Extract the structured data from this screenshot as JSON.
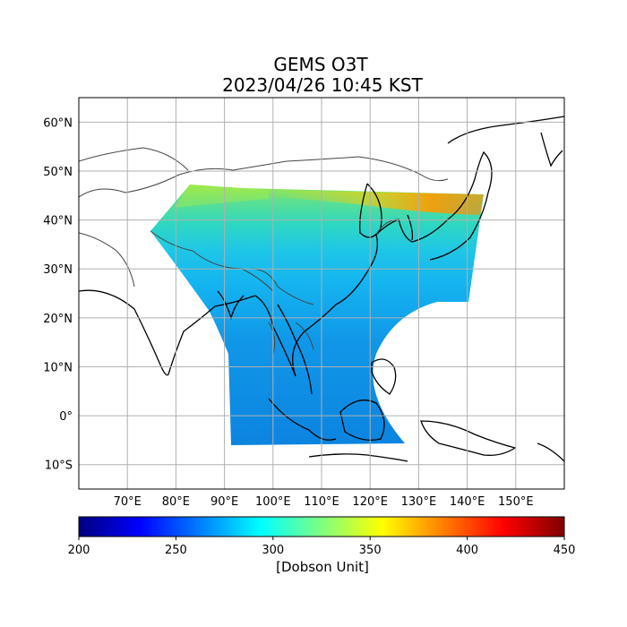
{
  "title": "GEMS O3T",
  "subtitle": "2023/04/26 10:45 KST",
  "map": {
    "lon_range": [
      60,
      160
    ],
    "lat_range": [
      -15,
      65
    ],
    "lat_ticks": [
      {
        "value": 60,
        "label": "60°N"
      },
      {
        "value": 50,
        "label": "50°N"
      },
      {
        "value": 40,
        "label": "40°N"
      },
      {
        "value": 30,
        "label": "30°N"
      },
      {
        "value": 20,
        "label": "20°N"
      },
      {
        "value": 10,
        "label": "10°N"
      },
      {
        "value": 0,
        "label": "0°"
      },
      {
        "value": -10,
        "label": "10°S"
      }
    ],
    "lon_ticks": [
      {
        "value": 70,
        "label": "70°E"
      },
      {
        "value": 80,
        "label": "80°E"
      },
      {
        "value": 90,
        "label": "90°E"
      },
      {
        "value": 100,
        "label": "100°E"
      },
      {
        "value": 110,
        "label": "110°E"
      },
      {
        "value": 120,
        "label": "120°E"
      },
      {
        "value": 130,
        "label": "130°E"
      },
      {
        "value": 140,
        "label": "140°E"
      },
      {
        "value": 150,
        "label": "150°E"
      }
    ],
    "grid": true
  },
  "colorbar": {
    "min": 200,
    "max": 450,
    "ticks": [
      "200",
      "250",
      "300",
      "350",
      "400",
      "450"
    ],
    "label": "[Dobson Unit]",
    "colormap": "jet",
    "stops": [
      "#00007f",
      "#0000ff",
      "#007fff",
      "#00ffff",
      "#7fff7f",
      "#ffff00",
      "#ff7f00",
      "#ff0000",
      "#7f0000"
    ]
  },
  "chart_data": {
    "type": "heatmap",
    "variable": "O3T",
    "units": "[Dobson Unit]",
    "title": "GEMS O3T",
    "subtitle": "2023/04/26 10:45 KST",
    "xlim": [
      60,
      160
    ],
    "ylim": [
      -15,
      65
    ],
    "value_range": [
      200,
      450
    ]
  }
}
